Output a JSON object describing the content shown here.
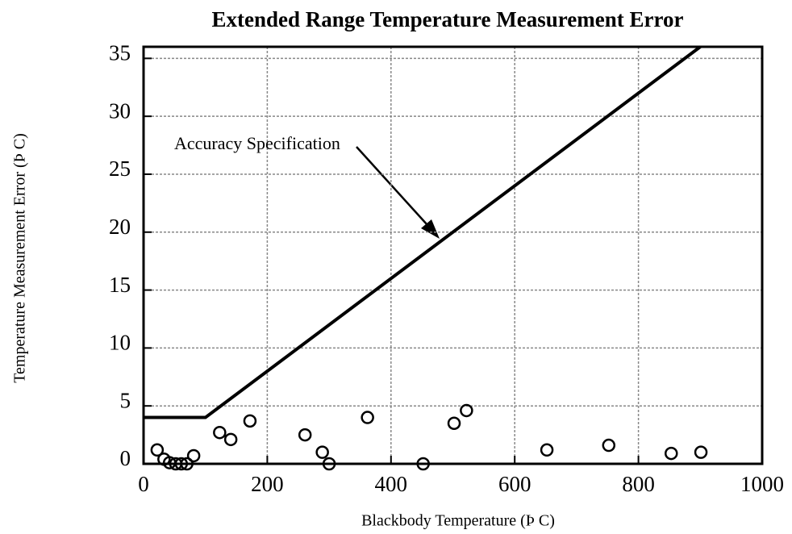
{
  "chart_data": {
    "type": "scatter",
    "title": "Extended Range Temperature Measurement Error",
    "xlabel": "Blackbody Temperature (Þ C)",
    "ylabel": "Temperature Measurement Error (Þ C)",
    "x": [
      22,
      33,
      42,
      52,
      61,
      70,
      81,
      123,
      141,
      172,
      261,
      289,
      300,
      362,
      452,
      502,
      522,
      652,
      752,
      853,
      901
    ],
    "values": [
      1.2,
      0.4,
      0.1,
      0,
      0,
      0,
      0.7,
      2.7,
      2.1,
      3.7,
      2.5,
      1,
      0,
      4,
      0,
      3.5,
      4.6,
      1.2,
      1.6,
      0.9,
      1
    ],
    "color": "#000000",
    "lines": [
      {
        "name": "Accuracy Specification",
        "x": [
          0,
          100,
          900
        ],
        "values": [
          4,
          4,
          36
        ],
        "color": "#000000"
      }
    ],
    "xlim": [
      0,
      1000
    ],
    "xticks": [
      0,
      200,
      400,
      600,
      800,
      1000
    ],
    "ylim": [
      0,
      36
    ],
    "yticks": [
      0,
      5,
      10,
      15,
      20,
      25,
      30,
      35
    ],
    "grid": true
  }
}
